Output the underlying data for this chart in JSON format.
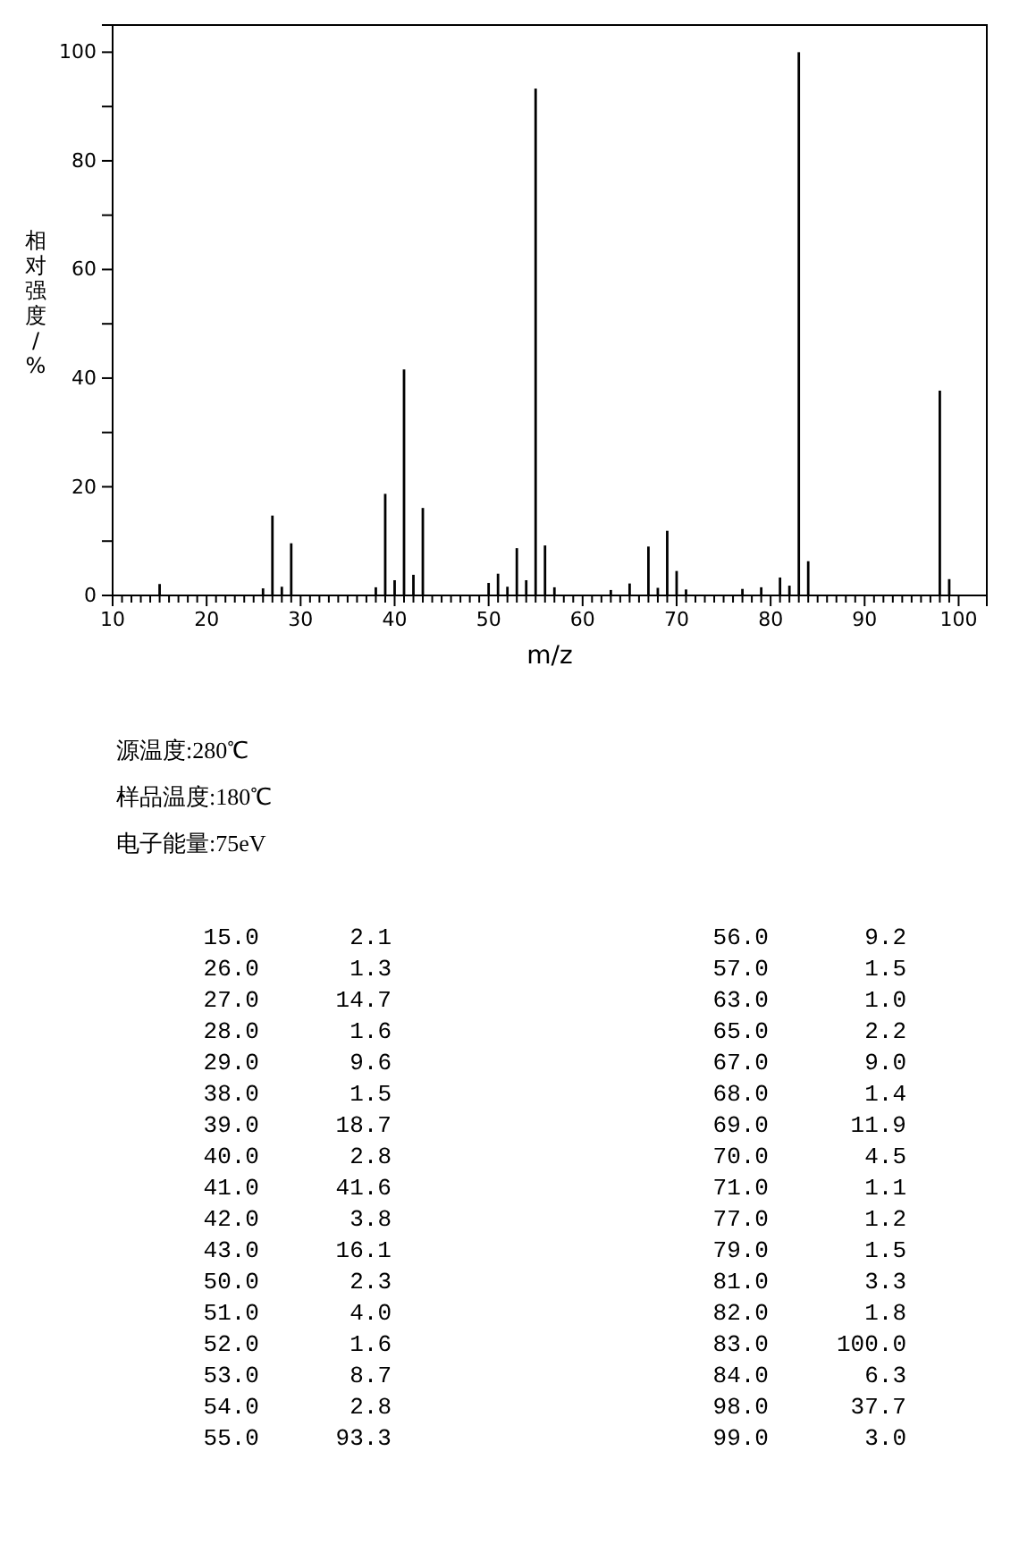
{
  "chart_data": {
    "type": "bar",
    "xlabel": "m/z",
    "ylabel": "相对强度/%",
    "x": [
      15,
      26,
      27,
      28,
      29,
      38,
      39,
      40,
      41,
      42,
      43,
      50,
      51,
      52,
      53,
      54,
      55,
      56,
      57,
      63,
      65,
      67,
      68,
      69,
      70,
      71,
      77,
      79,
      81,
      82,
      83,
      84,
      98,
      99
    ],
    "values": [
      2.1,
      1.3,
      14.7,
      1.6,
      9.6,
      1.5,
      18.7,
      2.8,
      41.6,
      3.8,
      16.1,
      2.3,
      4.0,
      1.6,
      8.7,
      2.8,
      93.3,
      9.2,
      1.5,
      1.0,
      2.2,
      9.0,
      1.4,
      11.9,
      4.5,
      1.1,
      1.2,
      1.5,
      3.3,
      1.8,
      100.0,
      6.3,
      37.7,
      3.0
    ],
    "color": "#000000",
    "xlim": [
      10,
      103
    ],
    "ylim": [
      0,
      105
    ],
    "xticks": [
      10,
      {
        "value": 11,
        "label": null
      },
      {
        "value": 12,
        "label": null
      },
      {
        "value": 13,
        "label": null
      },
      {
        "value": 14,
        "label": null
      },
      {
        "value": 15,
        "label": null
      },
      {
        "value": 16,
        "label": null
      },
      {
        "value": 17,
        "label": null
      },
      {
        "value": 18,
        "label": null
      },
      {
        "value": 19,
        "label": null
      },
      20,
      {
        "value": 21,
        "label": null
      },
      {
        "value": 22,
        "label": null
      },
      {
        "value": 23,
        "label": null
      },
      {
        "value": 24,
        "label": null
      },
      {
        "value": 25,
        "label": null
      },
      {
        "value": 26,
        "label": null
      },
      {
        "value": 27,
        "label": null
      },
      {
        "value": 28,
        "label": null
      },
      {
        "value": 29,
        "label": null
      },
      30,
      {
        "value": 31,
        "label": null
      },
      {
        "value": 32,
        "label": null
      },
      {
        "value": 33,
        "label": null
      },
      {
        "value": 34,
        "label": null
      },
      {
        "value": 35,
        "label": null
      },
      {
        "value": 36,
        "label": null
      },
      {
        "value": 37,
        "label": null
      },
      {
        "value": 38,
        "label": null
      },
      {
        "value": 39,
        "label": null
      },
      40,
      {
        "value": 41,
        "label": null
      },
      {
        "value": 42,
        "label": null
      },
      {
        "value": 43,
        "label": null
      },
      {
        "value": 44,
        "label": null
      },
      {
        "value": 45,
        "label": null
      },
      {
        "value": 46,
        "label": null
      },
      {
        "value": 47,
        "label": null
      },
      {
        "value": 48,
        "label": null
      },
      {
        "value": 49,
        "label": null
      },
      50,
      {
        "value": 51,
        "label": null
      },
      {
        "value": 52,
        "label": null
      },
      {
        "value": 53,
        "label": null
      },
      {
        "value": 54,
        "label": null
      },
      {
        "value": 55,
        "label": null
      },
      {
        "value": 56,
        "label": null
      },
      {
        "value": 57,
        "label": null
      },
      {
        "value": 58,
        "label": null
      },
      {
        "value": 59,
        "label": null
      },
      60,
      {
        "value": 61,
        "label": null
      },
      {
        "value": 62,
        "label": null
      },
      {
        "value": 63,
        "label": null
      },
      {
        "value": 64,
        "label": null
      },
      {
        "value": 65,
        "label": null
      },
      {
        "value": 66,
        "label": null
      },
      {
        "value": 67,
        "label": null
      },
      {
        "value": 68,
        "label": null
      },
      {
        "value": 69,
        "label": null
      },
      70,
      {
        "value": 71,
        "label": null
      },
      {
        "value": 72,
        "label": null
      },
      {
        "value": 73,
        "label": null
      },
      {
        "value": 74,
        "label": null
      },
      {
        "value": 75,
        "label": null
      },
      {
        "value": 76,
        "label": null
      },
      {
        "value": 77,
        "label": null
      },
      {
        "value": 78,
        "label": null
      },
      {
        "value": 79,
        "label": null
      },
      80,
      {
        "value": 81,
        "label": null
      },
      {
        "value": 82,
        "label": null
      },
      {
        "value": 83,
        "label": null
      },
      {
        "value": 84,
        "label": null
      },
      {
        "value": 85,
        "label": null
      },
      {
        "value": 86,
        "label": null
      },
      {
        "value": 87,
        "label": null
      },
      {
        "value": 88,
        "label": null
      },
      {
        "value": 89,
        "label": null
      },
      90,
      {
        "value": 91,
        "label": null
      },
      {
        "value": 92,
        "label": null
      },
      {
        "value": 93,
        "label": null
      },
      {
        "value": 94,
        "label": null
      },
      {
        "value": 95,
        "label": null
      },
      {
        "value": 96,
        "label": null
      },
      {
        "value": 97,
        "label": null
      },
      {
        "value": 98,
        "label": null
      },
      {
        "value": 99,
        "label": null
      },
      100
    ],
    "yticks": [
      0,
      {
        "value": 10,
        "label": null
      },
      20,
      {
        "value": 30,
        "label": null
      },
      40,
      {
        "value": 50,
        "label": null
      },
      60,
      {
        "value": 70,
        "label": null
      },
      80,
      {
        "value": 90,
        "label": null
      },
      100
    ],
    "grid": false,
    "annotations": [
      "源温度:280℃",
      "样品温度:180℃",
      "电子能量:75eV",
      "15.0",
      "2.1",
      "26.0",
      "1.3",
      "27.0",
      "14.7",
      "28.0",
      "1.6",
      "29.0",
      "9.6",
      "38.0",
      "1.5",
      "39.0",
      "18.7",
      "40.0",
      "2.8",
      "41.0",
      "41.6",
      "42.0",
      "3.8",
      "43.0",
      "16.1",
      "50.0",
      "2.3",
      "51.0",
      "4.0",
      "52.0",
      "1.6",
      "53.0",
      "8.7",
      "54.0",
      "2.8",
      "55.0",
      "93.3",
      "56.0",
      "9.2",
      "57.0",
      "1.5",
      "63.0",
      "1.0",
      "65.0",
      "2.2",
      "67.0",
      "9.0",
      "68.0",
      "1.4",
      "69.0",
      "11.9",
      "70.0",
      "4.5",
      "71.0",
      "1.1",
      "77.0",
      "1.2",
      "79.0",
      "1.5",
      "81.0",
      "3.3",
      "82.0",
      "1.8",
      "83.0",
      "100.0",
      "84.0",
      "6.3",
      "98.0",
      "37.7",
      "99.0",
      "3.0"
    ]
  }
}
